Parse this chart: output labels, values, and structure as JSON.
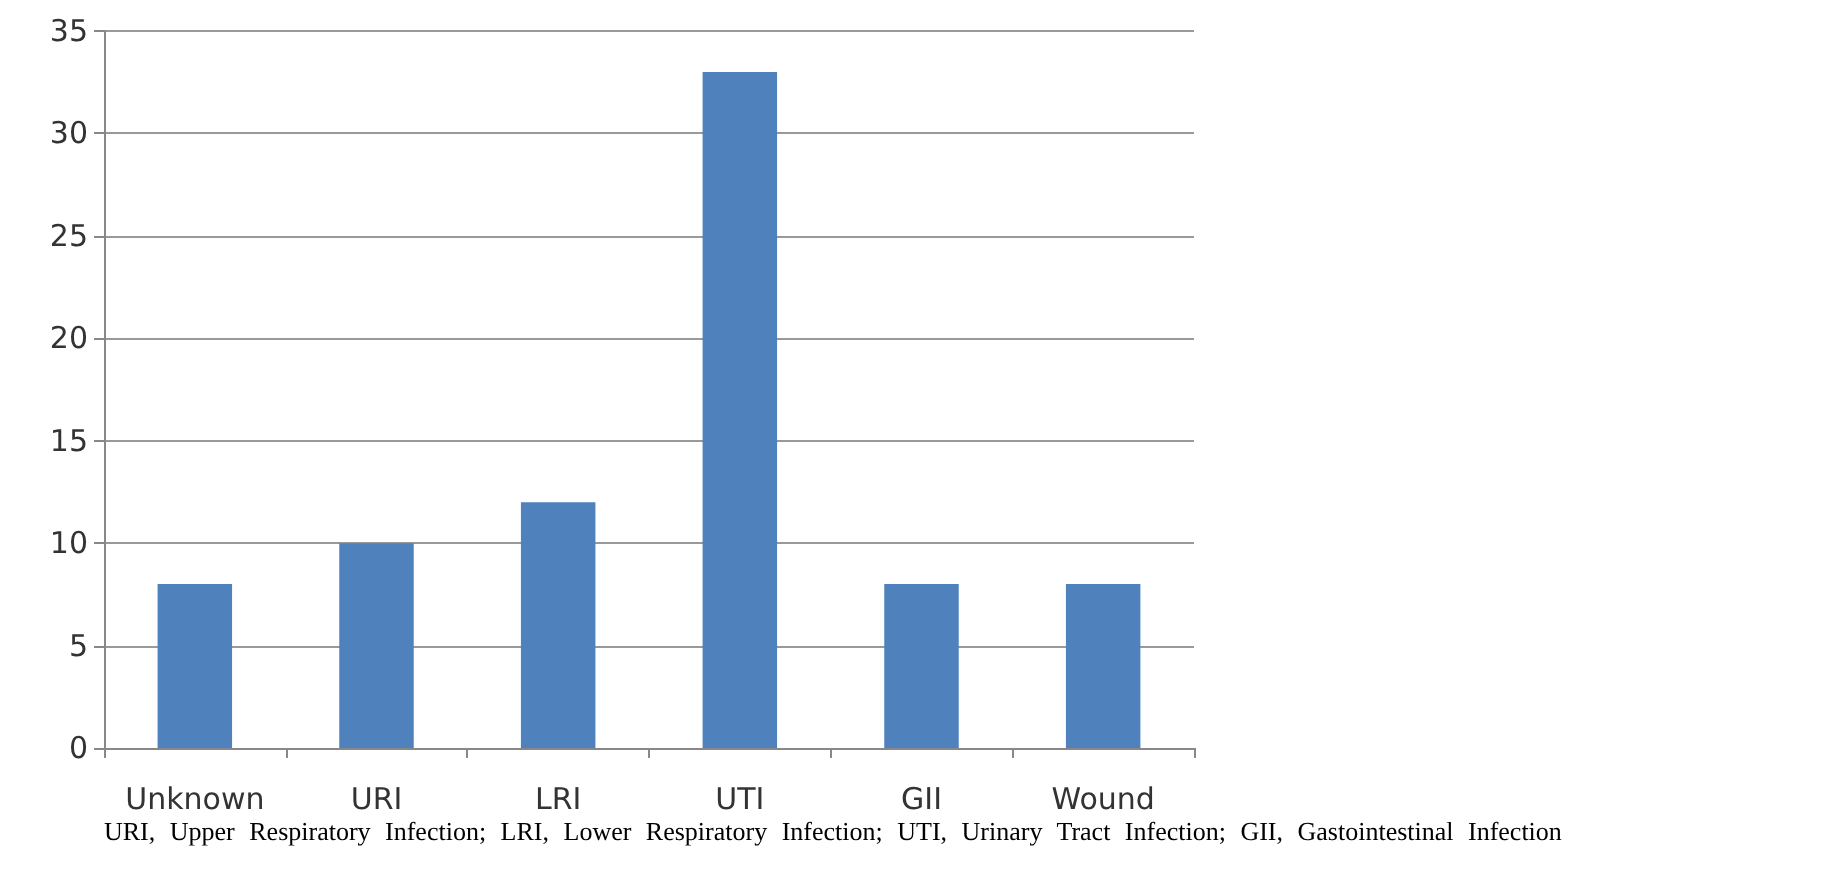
{
  "chart_data": {
    "type": "bar",
    "categories": [
      "Unknown",
      "URI",
      "LRI",
      "UTI",
      "GII",
      "Wound"
    ],
    "values": [
      8,
      10,
      12,
      33,
      8,
      8
    ],
    "color": "#4f81bd",
    "ylim": [
      0,
      35
    ],
    "yticks": [
      0,
      5,
      10,
      15,
      20,
      25,
      30,
      35
    ],
    "grid": "y",
    "annotations": [
      "URI, Upper Respiratory Infection; LRI, Lower Respiratory Infection; UTI, Urinary Tract Infection; GII, Gastointestinal Infection"
    ]
  }
}
